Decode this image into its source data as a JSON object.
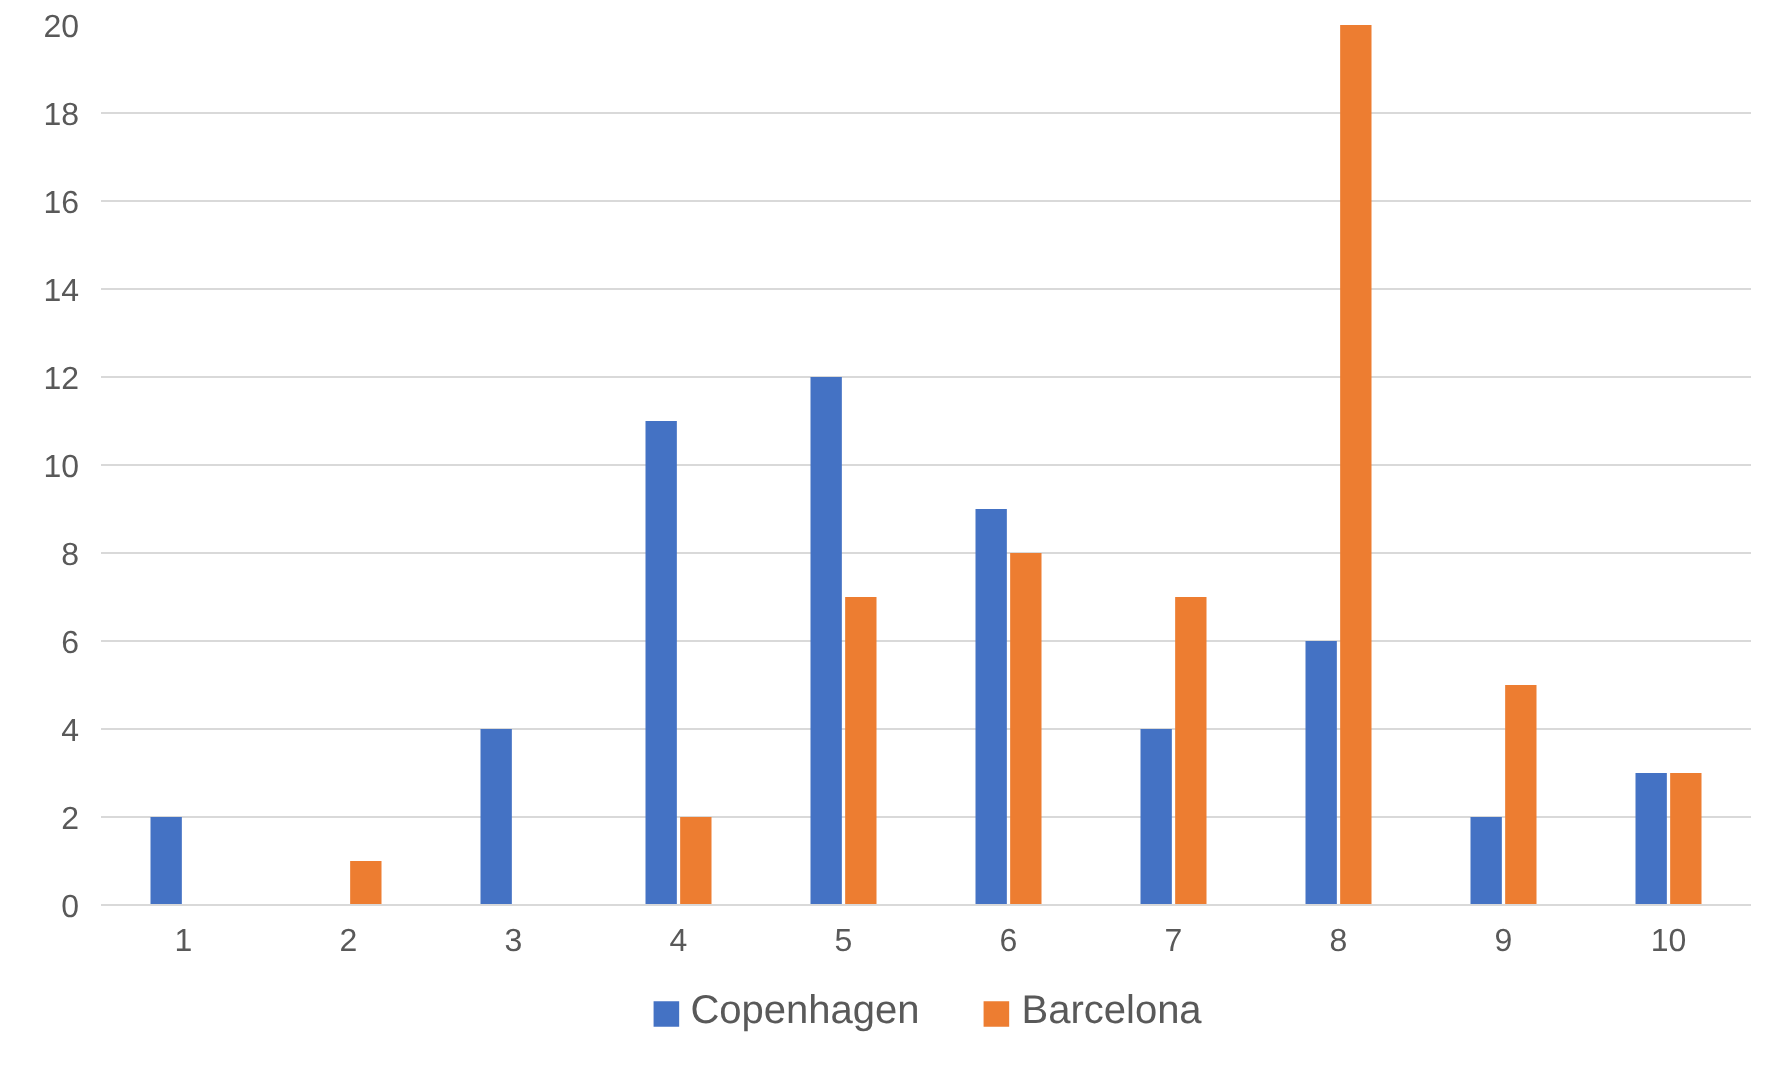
{
  "chart_data": {
    "type": "bar",
    "categories": [
      "1",
      "2",
      "3",
      "4",
      "5",
      "6",
      "7",
      "8",
      "9",
      "10"
    ],
    "series": [
      {
        "name": "Copenhagen",
        "color": "#4472c4",
        "values": [
          2,
          0,
          4,
          11,
          12,
          9,
          4,
          6,
          2,
          3
        ]
      },
      {
        "name": "Barcelona",
        "color": "#ed7d31",
        "values": [
          0,
          1,
          0,
          2,
          7,
          8,
          7,
          20,
          5,
          3
        ]
      }
    ],
    "ylim": [
      0,
      20
    ],
    "yticks": [
      0,
      2,
      4,
      6,
      8,
      10,
      12,
      14,
      16,
      18,
      20
    ],
    "grid": "y",
    "legend": "bottom"
  }
}
